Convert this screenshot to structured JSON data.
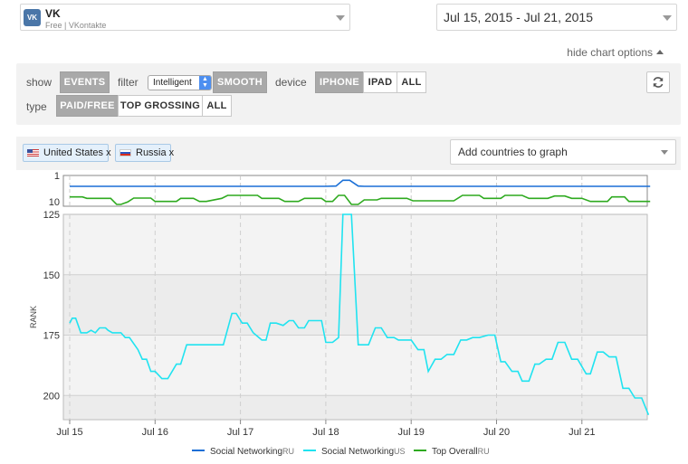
{
  "app": {
    "icon_text": "VK",
    "name": "VK",
    "subtitle": "Free | VKontakte"
  },
  "date_range": "Jul 15, 2015 - Jul 21, 2015",
  "hide_options_label": "hide chart options",
  "options": {
    "show_label": "show",
    "show_buttons": [
      {
        "label": "EVENTS",
        "active": true
      }
    ],
    "filter_label": "filter",
    "filter_value": "Intelligent",
    "smooth_label": "SMOOTH",
    "device_label": "device",
    "device_buttons": [
      {
        "label": "IPHONE",
        "active": true
      },
      {
        "label": "IPAD",
        "active": false
      },
      {
        "label": "ALL",
        "active": false
      }
    ],
    "type_label": "type",
    "type_buttons": [
      {
        "label": "PAID/FREE",
        "active": true
      },
      {
        "label": "TOP GROSSING",
        "active": false
      },
      {
        "label": "ALL",
        "active": false
      }
    ]
  },
  "countries": {
    "selected": [
      {
        "name": "United States x",
        "flag": "us-flag-icon"
      },
      {
        "name": "Russia x",
        "flag": "ru-flag-icon"
      }
    ],
    "add_label": "Add countries to graph"
  },
  "colors": {
    "social_ru": "#1a6fd6",
    "social_us": "#20e3f0",
    "top_ru": "#2eaa1f"
  },
  "chart_data": {
    "type": "line",
    "x_tick_labels": [
      "Jul 15",
      "Jul 16",
      "Jul 17",
      "Jul 18",
      "Jul 19",
      "Jul 20",
      "Jul 21"
    ],
    "mini_chart": {
      "y_tick_labels": [
        "1",
        "10"
      ],
      "ylim": [
        1,
        10
      ],
      "series": [
        {
          "name": "Social NetworkingRU",
          "color": "#1a6fd6",
          "x": [
            0,
            3.0,
            3.12,
            3.2,
            3.28,
            3.38,
            3.45,
            4.0,
            6.5,
            6.8
          ],
          "y": [
            4.0,
            4.0,
            3.9,
            2.0,
            2.0,
            3.9,
            4.0,
            4.0,
            4.0,
            4.0
          ]
        },
        {
          "name": "Top OverallRU",
          "color": "#2eaa1f",
          "x": [
            0,
            0.15,
            0.2,
            0.48,
            0.55,
            0.6,
            0.68,
            0.75,
            0.95,
            1.0,
            1.25,
            1.3,
            1.45,
            1.52,
            1.6,
            1.78,
            1.85,
            2.2,
            2.25,
            2.45,
            2.52,
            2.68,
            2.75,
            2.95,
            3.0,
            3.08,
            3.15,
            3.22,
            3.3,
            3.38,
            3.45,
            3.6,
            3.65,
            3.95,
            4.02,
            4.5,
            4.6,
            4.8,
            4.85,
            5.05,
            5.1,
            5.3,
            5.38,
            5.6,
            5.68,
            5.8,
            5.88,
            6.0,
            6.1,
            6.3,
            6.35,
            6.5,
            6.55,
            6.8
          ],
          "y": [
            7.5,
            7.5,
            8.0,
            8.0,
            10.0,
            10.0,
            9.2,
            7.9,
            7.9,
            9.0,
            9.0,
            8.0,
            8.0,
            9.0,
            9.0,
            8.0,
            7.0,
            7.0,
            8.0,
            8.0,
            9.0,
            9.0,
            8.0,
            8.0,
            9.0,
            9.0,
            7.0,
            7.0,
            10.0,
            10.0,
            8.5,
            8.5,
            8.0,
            8.0,
            8.8,
            8.8,
            7.0,
            7.0,
            8.0,
            8.0,
            7.0,
            7.0,
            8.0,
            8.0,
            7.2,
            7.2,
            8.0,
            8.0,
            9.0,
            9.0,
            7.5,
            7.5,
            9.0,
            9.0
          ]
        }
      ]
    },
    "main_chart": {
      "ylabel": "RANK",
      "y_tick_labels": [
        "125",
        "150",
        "175",
        "200"
      ],
      "ylim": [
        125,
        210
      ],
      "y_reversed": true,
      "series": [
        {
          "name": "Social NetworkingUS",
          "color": "#20e3f0",
          "x": [
            0.0,
            0.03,
            0.07,
            0.13,
            0.2,
            0.25,
            0.3,
            0.35,
            0.42,
            0.45,
            0.5,
            0.6,
            0.65,
            0.7,
            0.8,
            0.85,
            0.9,
            0.95,
            1.0,
            1.08,
            1.15,
            1.25,
            1.3,
            1.37,
            1.45,
            1.5,
            1.6,
            1.7,
            1.8,
            1.9,
            1.95,
            2.02,
            2.08,
            2.15,
            2.25,
            2.3,
            2.35,
            2.42,
            2.5,
            2.57,
            2.62,
            2.68,
            2.75,
            2.8,
            2.88,
            2.95,
            3.0,
            3.08,
            3.15,
            3.2,
            3.3,
            3.38,
            3.45,
            3.5,
            3.58,
            3.65,
            3.72,
            3.8,
            3.85,
            3.9,
            4.0,
            4.08,
            4.15,
            4.2,
            4.28,
            4.35,
            4.42,
            4.5,
            4.58,
            4.65,
            4.72,
            4.8,
            4.9,
            4.98,
            5.05,
            5.1,
            5.18,
            5.25,
            5.3,
            5.38,
            5.45,
            5.5,
            5.58,
            5.65,
            5.72,
            5.8,
            5.88,
            5.95,
            6.05,
            6.1,
            6.18,
            6.25,
            6.32,
            6.4,
            6.48,
            6.55,
            6.62,
            6.7,
            6.78
          ],
          "y": [
            170,
            168,
            168,
            174,
            174,
            173,
            174,
            172,
            172,
            173,
            174,
            174,
            176,
            176,
            181,
            185,
            185,
            190,
            190,
            193,
            193,
            187,
            187,
            179,
            179,
            179,
            179,
            179,
            179,
            166,
            166,
            170,
            170,
            174,
            177,
            177,
            170,
            170,
            171,
            169,
            169,
            172,
            172,
            169,
            169,
            169,
            178,
            178,
            176,
            125,
            125,
            179,
            179,
            179,
            172,
            172,
            176,
            176,
            177,
            177,
            177,
            181,
            181,
            190,
            185,
            185,
            183,
            183,
            177,
            177,
            176,
            176,
            175,
            175,
            186,
            186,
            190,
            190,
            194,
            194,
            187,
            187,
            185,
            185,
            178,
            178,
            185,
            185,
            191,
            191,
            182,
            182,
            184,
            184,
            197,
            197,
            201,
            201,
            208
          ]
        }
      ]
    },
    "annotations": "vertical dashed event lines at each day",
    "legend": [
      {
        "name": "Social Networking",
        "suffix": "RU",
        "color": "#1a6fd6"
      },
      {
        "name": "Social Networking",
        "suffix": "US",
        "color": "#20e3f0"
      },
      {
        "name": "Top Overall",
        "suffix": "RU",
        "color": "#2eaa1f"
      }
    ]
  }
}
